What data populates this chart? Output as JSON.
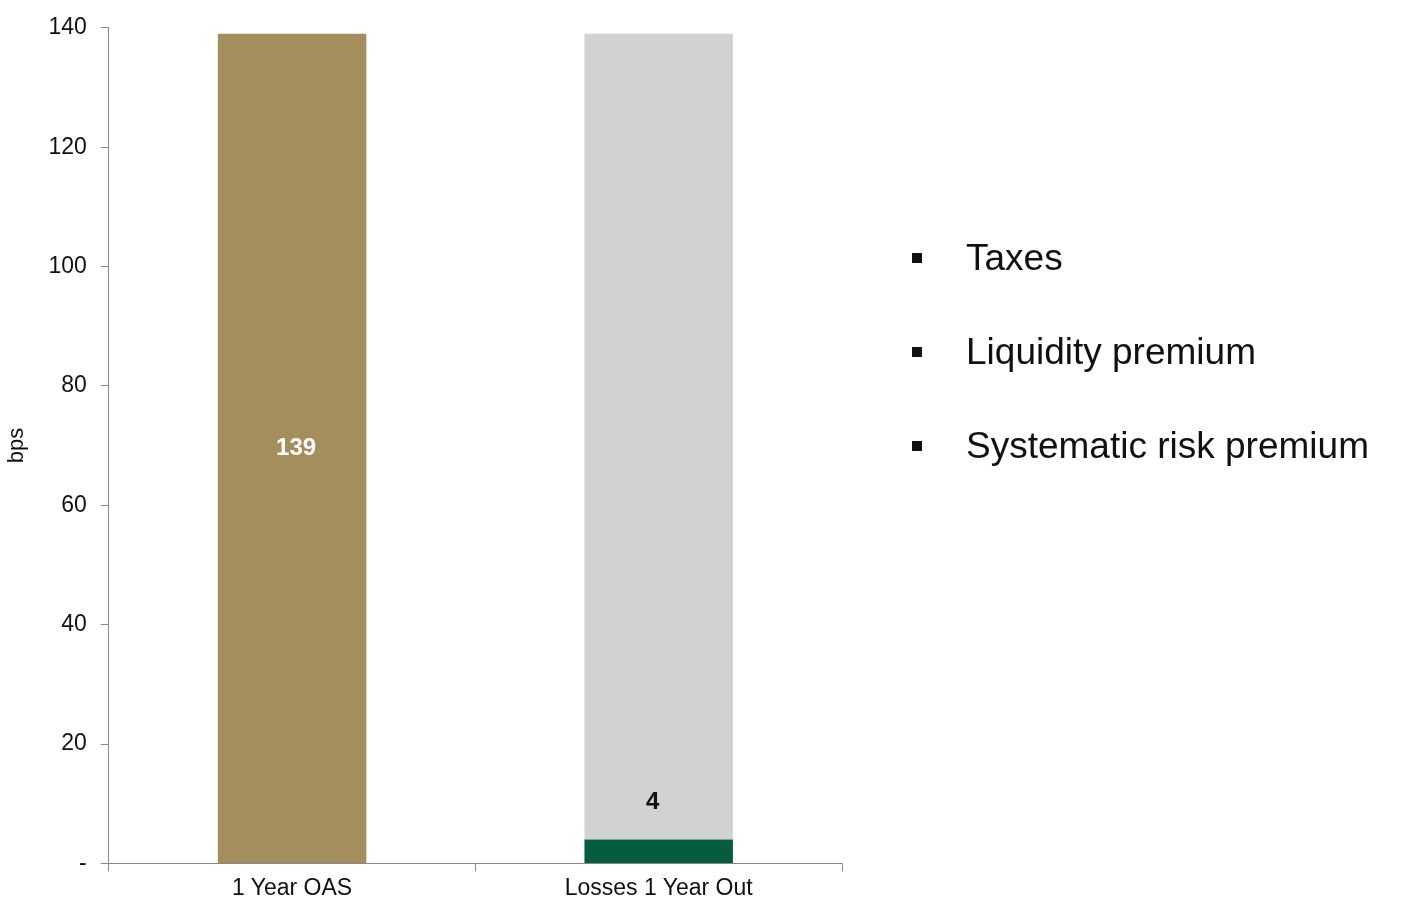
{
  "chart_data": {
    "type": "bar",
    "stacked": true,
    "ylabel": "bps",
    "categories": [
      "1 Year OAS",
      "Losses 1 Year Out"
    ],
    "series": [
      {
        "colors": [
          "#a58e5e",
          "#045e3e"
        ],
        "values": [
          139,
          4
        ],
        "value_labels": [
          "139",
          "4"
        ]
      },
      {
        "color": "#d2d2d2",
        "values": [
          null,
          135
        ]
      }
    ],
    "ylim": [
      0,
      140
    ],
    "yticks": [
      {
        "value": 0,
        "label": "-"
      },
      20,
      40,
      60,
      80,
      100,
      120,
      140
    ],
    "annotations": [
      "Taxes",
      "Liquidity premium",
      "Systematic risk premium"
    ]
  }
}
